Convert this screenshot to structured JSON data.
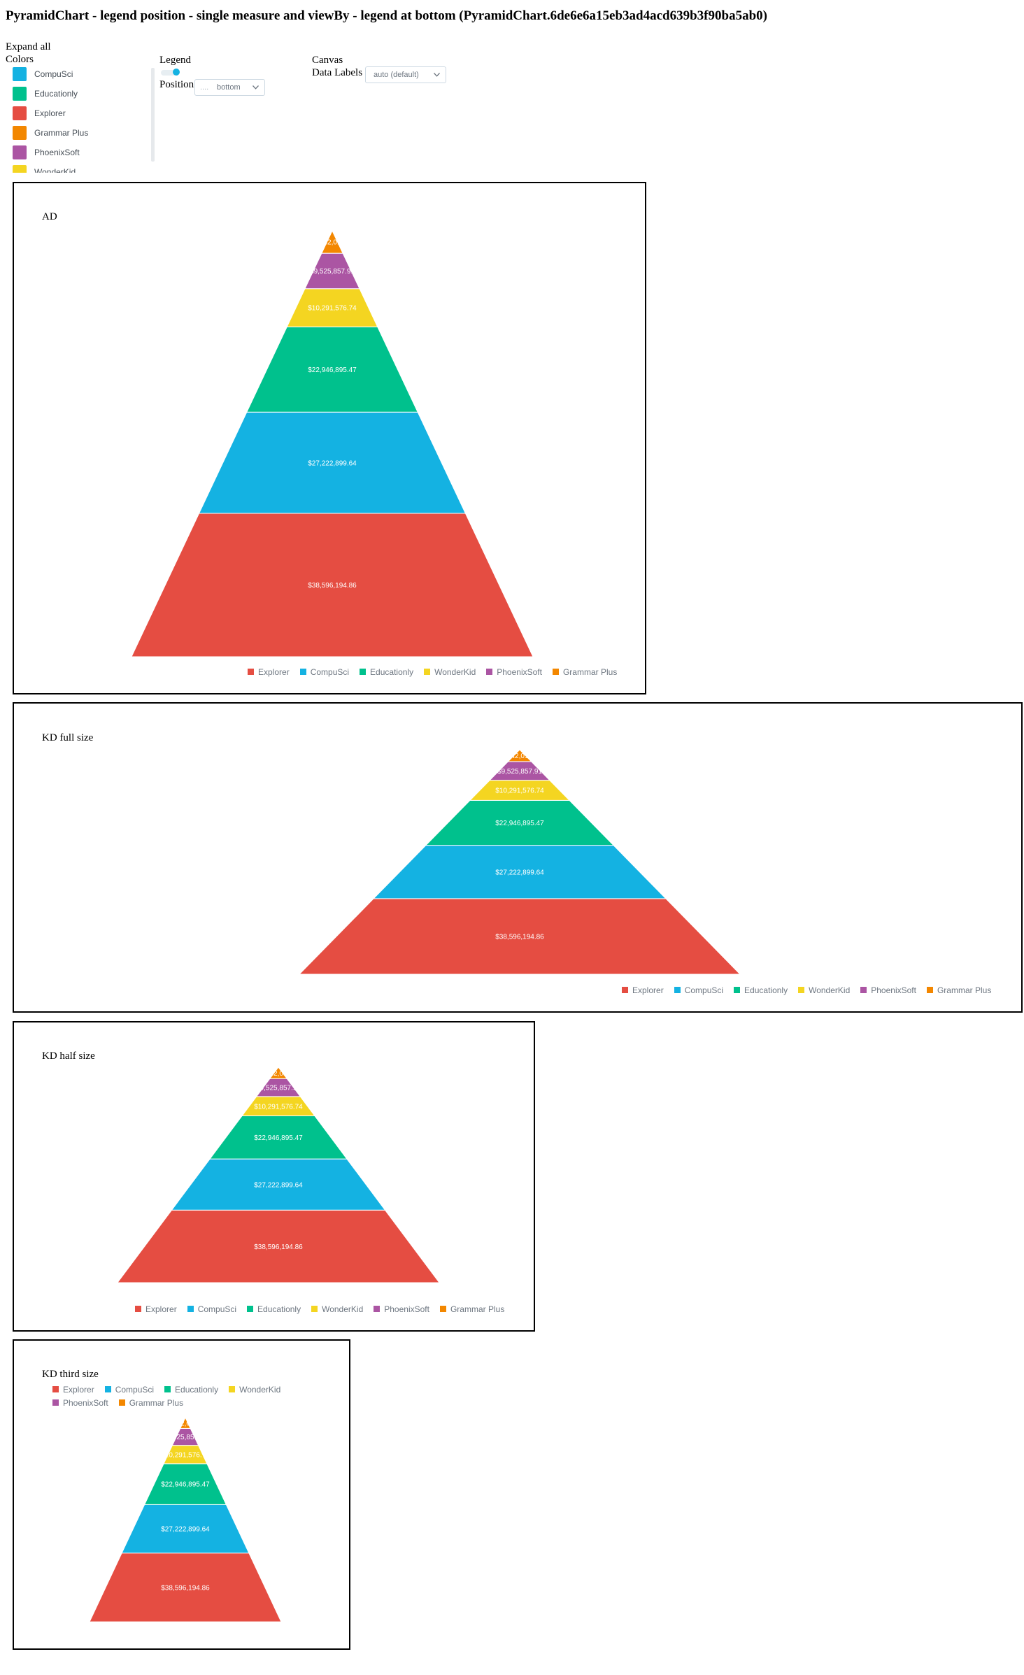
{
  "page_title": "PyramidChart - legend position - single measure and viewBy - legend at bottom (PyramidChart.6de6e6a15eb3ad4acd639b3f90ba5ab0)",
  "config": {
    "expand_all": "Expand all",
    "colors_label": "Colors",
    "legend_label": "Legend",
    "position_label": "Position",
    "position_value": "bottom",
    "position_prefix": "....",
    "canvas_label": "Canvas",
    "data_labels_label": "Data Labels",
    "data_labels_value": "auto (default)"
  },
  "colors": [
    {
      "name": "CompuSci",
      "color": "#14b2e2"
    },
    {
      "name": "Educationly",
      "color": "#00c18d"
    },
    {
      "name": "Explorer",
      "color": "#e54d42"
    },
    {
      "name": "Grammar Plus",
      "color": "#f38700"
    },
    {
      "name": "PhoenixSoft",
      "color": "#ab55a3"
    },
    {
      "name": "WonderKid",
      "color": "#f4d521"
    }
  ],
  "charts": [
    {
      "title": "AD"
    },
    {
      "title": "KD full size"
    },
    {
      "title": "KD half size"
    },
    {
      "title": "KD third size"
    }
  ],
  "chart_data": {
    "type": "pyramid",
    "series": [
      {
        "name": "Explorer",
        "value": 38596194.86,
        "label": "$38,596,194.86",
        "color": "#e54d42"
      },
      {
        "name": "CompuSci",
        "value": 27222899.64,
        "label": "$27,222,899.64",
        "color": "#14b2e2"
      },
      {
        "name": "Educationly",
        "value": 22946895.47,
        "label": "$22,946,895.47",
        "color": "#00c18d"
      },
      {
        "name": "WonderKid",
        "value": 10291576.74,
        "label": "$10,291,576.74",
        "color": "#f4d521"
      },
      {
        "name": "PhoenixSoft",
        "value": 9525857.91,
        "label": "$9,525,857.91",
        "color": "#ab55a3"
      },
      {
        "name": "Grammar Plus",
        "value": 6042014.37,
        "label": "$6,042,014.37",
        "color": "#f38700"
      }
    ],
    "legend_position": "bottom"
  }
}
